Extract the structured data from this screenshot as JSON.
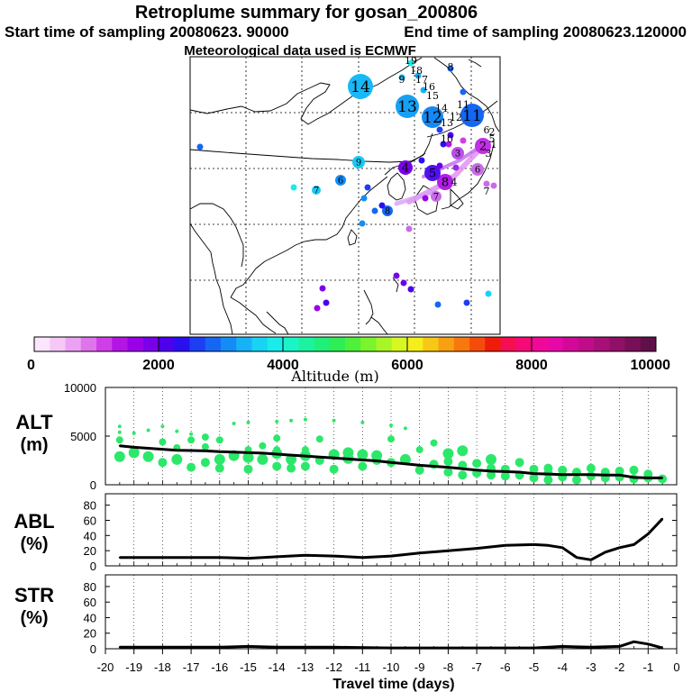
{
  "header": {
    "title": "Retroplume summary for gosan_200806",
    "start_label": "Start time of sampling 20080623. 90000",
    "end_label": "End time of sampling 20080623.120000",
    "met_label": "Meteorological data used is ECMWF"
  },
  "colorbar": {
    "label": "Altitude (m)",
    "min": 0,
    "max": 10000,
    "tick_labels": [
      "0",
      "2000",
      "4000",
      "6000",
      "8000",
      "10000"
    ],
    "colors": [
      "#fce6fc",
      "#f5c8f7",
      "#eca2f2",
      "#df74ec",
      "#cf3fe8",
      "#b414e6",
      "#9a00e8",
      "#7a00ea",
      "#4c00ee",
      "#2a10f0",
      "#1d3ef2",
      "#1666f4",
      "#138df5",
      "#16b2f6",
      "#18d3f4",
      "#19ecea",
      "#1af5c8",
      "#1cf3a0",
      "#20f07a",
      "#2eee55",
      "#4ff03a",
      "#7af42c",
      "#a8f626",
      "#d6f722",
      "#f6ee1c",
      "#f8c816",
      "#f8a012",
      "#f8780e",
      "#f54c0c",
      "#f01c0a",
      "#f50e52",
      "#f50a78",
      "#f20898",
      "#e808a8",
      "#d40898",
      "#c00c88",
      "#a81078",
      "#901068",
      "#781058",
      "#601048"
    ]
  },
  "map": {
    "plume_markers": [
      {
        "label": "14",
        "size": "large",
        "color": "#19b8f6"
      },
      {
        "label": "13",
        "size": "large",
        "color": "#16a0f4"
      },
      {
        "label": "12",
        "size": "large",
        "color": "#1688f3"
      },
      {
        "label": "11",
        "size": "large",
        "color": "#1566f2"
      },
      {
        "label": "2",
        "size": "medium",
        "color": "#c22fe6"
      },
      {
        "label": "8",
        "size": "medium",
        "color": "#b01ee6"
      },
      {
        "label": "5",
        "size": "medium",
        "color": "#5010ee"
      },
      {
        "label": "4",
        "size": "medium",
        "color": "#7a00ea"
      },
      {
        "label": "3",
        "size": "small",
        "color": "#b84ee8"
      },
      {
        "label": "6",
        "size": "small",
        "color": "#c96be9"
      },
      {
        "label": "7",
        "size": "small",
        "color": "#c96be9"
      },
      {
        "label": "6",
        "size": "small",
        "color": "#138df5"
      },
      {
        "label": "7",
        "size": "small",
        "color": "#19c8f4"
      },
      {
        "label": "9",
        "size": "small",
        "color": "#19c8f4"
      },
      {
        "label": "8",
        "size": "small",
        "color": "#1666f4"
      }
    ],
    "site_labels": [
      "19",
      "18",
      "17",
      "16",
      "15",
      "14",
      "13",
      "12",
      "11",
      "10",
      "9",
      "8",
      "7",
      "6",
      "5",
      "4",
      "3",
      "2",
      "1"
    ]
  },
  "chart_data": [
    {
      "type": "line",
      "name": "ALT",
      "ylabel": "ALT",
      "yunit": "(m)",
      "ylim": [
        0,
        10000
      ],
      "yticks": [
        0,
        5000,
        10000
      ],
      "xlabel": "Travel time (days)",
      "xlim": [
        -20,
        0
      ],
      "x": [
        -19.5,
        -19,
        -18.5,
        -18,
        -17.5,
        -17,
        -16.5,
        -16,
        -15.5,
        -15,
        -14.5,
        -14,
        -13.5,
        -13,
        -12.5,
        -12,
        -11.5,
        -11,
        -10.5,
        -10,
        -9.5,
        -9,
        -8.5,
        -8,
        -7.5,
        -7,
        -6.5,
        -6,
        -5.5,
        -5,
        -4.5,
        -4,
        -3.5,
        -3,
        -2.5,
        -2,
        -1.5,
        -1,
        -0.5
      ],
      "y": [
        4000,
        3850,
        3750,
        3650,
        3550,
        3520,
        3480,
        3400,
        3350,
        3300,
        3250,
        3150,
        3050,
        2950,
        2850,
        2750,
        2650,
        2550,
        2450,
        2300,
        2150,
        2000,
        1900,
        1800,
        1650,
        1500,
        1400,
        1350,
        1300,
        1150,
        1100,
        1050,
        1050,
        1050,
        1000,
        1000,
        750,
        700,
        700
      ],
      "clusters": [
        {
          "x": -19.5,
          "alts": [
            2900,
            4600,
            5400,
            6000
          ]
        },
        {
          "x": -19,
          "alts": [
            3300,
            5300
          ]
        },
        {
          "x": -18.5,
          "alts": [
            2900,
            5600
          ]
        },
        {
          "x": -18,
          "alts": [
            2300,
            4400,
            6000
          ]
        },
        {
          "x": -17.5,
          "alts": [
            2600,
            3800,
            5500
          ]
        },
        {
          "x": -17,
          "alts": [
            1800,
            4600,
            5200
          ]
        },
        {
          "x": -16.5,
          "alts": [
            2300,
            3900,
            4900
          ]
        },
        {
          "x": -16,
          "alts": [
            1700,
            2600,
            4600
          ]
        },
        {
          "x": -15.5,
          "alts": [
            3000,
            6300
          ]
        },
        {
          "x": -15,
          "alts": [
            1600,
            2800,
            3600,
            6400
          ]
        },
        {
          "x": -14.5,
          "alts": [
            2600,
            4000
          ]
        },
        {
          "x": -14,
          "alts": [
            1900,
            3200,
            3600,
            4800,
            6500
          ]
        },
        {
          "x": -13.5,
          "alts": [
            1700,
            2600,
            6600
          ]
        },
        {
          "x": -13,
          "alts": [
            1900,
            3000,
            3600,
            6700
          ]
        },
        {
          "x": -12.5,
          "alts": [
            2500,
            4700
          ]
        },
        {
          "x": -12,
          "alts": [
            1600,
            3100,
            6600
          ]
        },
        {
          "x": -11.5,
          "alts": [
            2700,
            3300
          ]
        },
        {
          "x": -11,
          "alts": [
            1900,
            3100,
            6400
          ]
        },
        {
          "x": -10.5,
          "alts": [
            2500,
            3000
          ]
        },
        {
          "x": -10,
          "alts": [
            2300,
            4700,
            6100
          ]
        },
        {
          "x": -9.5,
          "alts": [
            2600,
            5800
          ]
        },
        {
          "x": -9,
          "alts": [
            1500,
            3600
          ]
        },
        {
          "x": -8.5,
          "alts": [
            2100,
            4300
          ]
        },
        {
          "x": -8,
          "alts": [
            1300,
            2400,
            3200
          ]
        },
        {
          "x": -7.5,
          "alts": [
            1000,
            2000,
            3500
          ]
        },
        {
          "x": -7,
          "alts": [
            1200,
            2200
          ]
        },
        {
          "x": -6.5,
          "alts": [
            1000,
            1700,
            2600
          ]
        },
        {
          "x": -6,
          "alts": [
            900,
            1600
          ]
        },
        {
          "x": -5.5,
          "alts": [
            1000,
            2300
          ]
        },
        {
          "x": -5,
          "alts": [
            700,
            1600
          ]
        },
        {
          "x": -4.5,
          "alts": [
            500,
            1200,
            1700
          ]
        },
        {
          "x": -4,
          "alts": [
            800,
            1500
          ]
        },
        {
          "x": -3.5,
          "alts": [
            500,
            1300
          ]
        },
        {
          "x": -3,
          "alts": [
            900,
            1700
          ]
        },
        {
          "x": -2.5,
          "alts": [
            700,
            1300
          ]
        },
        {
          "x": -2,
          "alts": [
            800,
            1400
          ]
        },
        {
          "x": -1.5,
          "alts": [
            600,
            1500
          ]
        },
        {
          "x": -1,
          "alts": [
            700,
            1100
          ]
        },
        {
          "x": -0.5,
          "alts": [
            600
          ]
        }
      ]
    },
    {
      "type": "line",
      "name": "ABL",
      "ylabel": "ABL",
      "yunit": "(%)",
      "ylim": [
        0,
        95
      ],
      "yticks": [
        0,
        20,
        40,
        60,
        80
      ],
      "xlim": [
        -20,
        0
      ],
      "x": [
        -19.5,
        -18,
        -17,
        -16,
        -15,
        -14,
        -13,
        -12,
        -11,
        -10,
        -9,
        -8,
        -7,
        -6,
        -5,
        -4.5,
        -4,
        -3.5,
        -3,
        -2.5,
        -2,
        -1.5,
        -1,
        -0.5
      ],
      "y": [
        11,
        11,
        11,
        11,
        10,
        12,
        14,
        13,
        11,
        13,
        17,
        20,
        23,
        27,
        28,
        27,
        24,
        11,
        8,
        18,
        24,
        28,
        42,
        62
      ]
    },
    {
      "type": "line",
      "name": "STR",
      "ylabel": "STR",
      "yunit": "(%)",
      "ylim": [
        0,
        95
      ],
      "yticks": [
        0,
        20,
        40,
        60,
        80
      ],
      "xlim": [
        -20,
        0
      ],
      "xticks": [
        -20,
        -19,
        -18,
        -17,
        -16,
        -15,
        -14,
        -13,
        -12,
        -11,
        -10,
        -9,
        -8,
        -7,
        -6,
        -5,
        -4,
        -3,
        -2,
        -1,
        0
      ],
      "x": [
        -19.5,
        -18,
        -16,
        -15,
        -14,
        -12,
        -10,
        -8,
        -6,
        -5,
        -4,
        -3,
        -2,
        -1.5,
        -1,
        -0.5
      ],
      "y": [
        2,
        2,
        2,
        3,
        2,
        2,
        1,
        1,
        1,
        1,
        3,
        2,
        3,
        9,
        6,
        1
      ]
    }
  ]
}
